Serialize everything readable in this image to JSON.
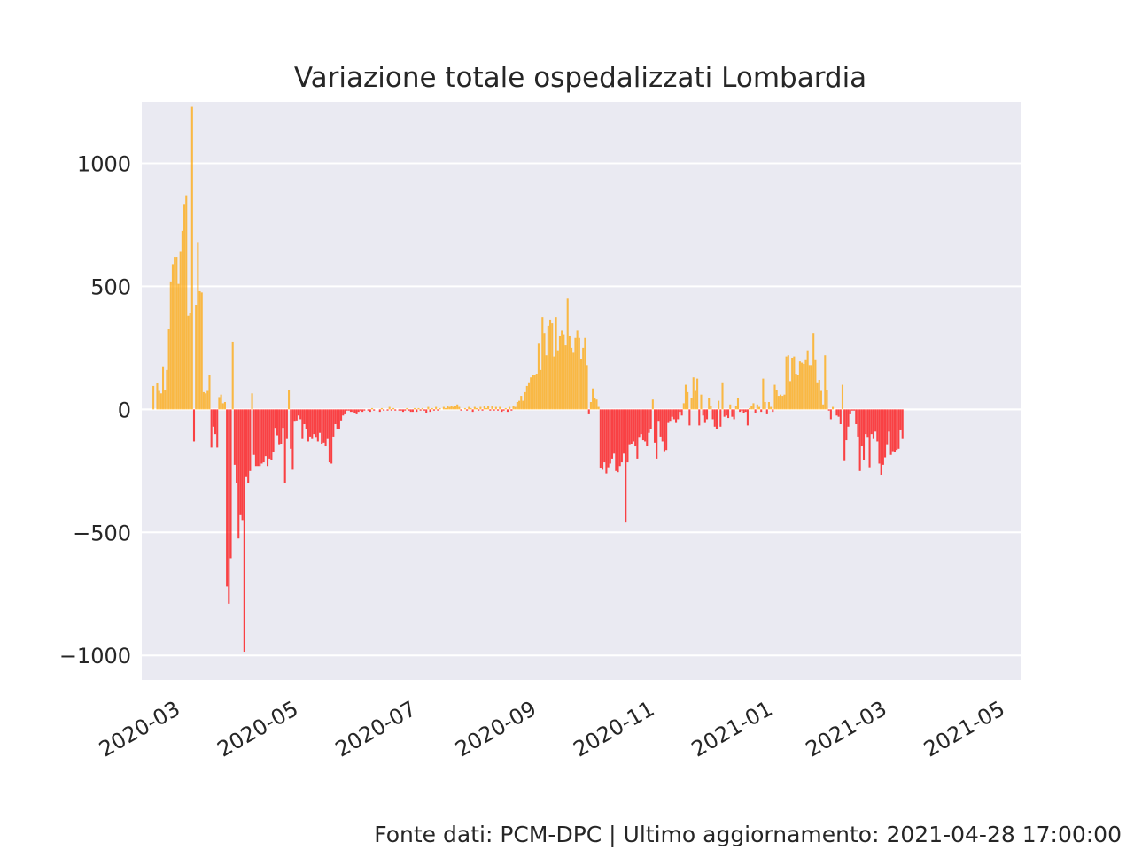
{
  "chart_data": {
    "type": "bar",
    "title": "Variazione totale ospedalizzati Lombardia",
    "xlabel": "",
    "ylabel": "",
    "xlim": [
      "2020-02-18",
      "2021-05-17"
    ],
    "ylim": [
      -1100,
      1250
    ],
    "y_ticks": [
      1000,
      500,
      0,
      -500,
      -1000
    ],
    "y_tick_labels": [
      "1000",
      "500",
      "0",
      "−500",
      "−1000"
    ],
    "x_ticks": [
      "2020-03-01",
      "2020-05-01",
      "2020-07-01",
      "2020-09-01",
      "2020-11-01",
      "2021-01-01",
      "2021-03-01",
      "2021-05-01"
    ],
    "x_tick_labels": [
      "2020-03",
      "2020-05",
      "2020-07",
      "2020-09",
      "2020-11",
      "2021-01",
      "2021-03",
      "2021-05"
    ],
    "positive_color": "#FFA500",
    "negative_color": "#FF0000",
    "grid": true,
    "legend": "none",
    "start_date": "2020-02-24",
    "values": [
      95,
      0,
      108,
      75,
      65,
      175,
      80,
      160,
      325,
      520,
      590,
      620,
      620,
      510,
      640,
      725,
      835,
      870,
      380,
      390,
      1230,
      -130,
      425,
      680,
      480,
      475,
      70,
      65,
      75,
      140,
      -155,
      -70,
      -100,
      -155,
      50,
      60,
      25,
      30,
      -720,
      -790,
      -605,
      275,
      -225,
      -300,
      -525,
      -430,
      -450,
      -985,
      -275,
      -300,
      -250,
      65,
      -185,
      -230,
      -230,
      -230,
      -220,
      -215,
      -190,
      -230,
      -200,
      -205,
      -175,
      -75,
      -105,
      -145,
      -140,
      -75,
      -300,
      -120,
      80,
      -160,
      -245,
      -50,
      -45,
      -25,
      -40,
      -120,
      -60,
      -80,
      -130,
      -110,
      -120,
      -100,
      -115,
      -130,
      -95,
      -140,
      -135,
      -150,
      -120,
      -215,
      -220,
      -110,
      -60,
      -80,
      -80,
      -45,
      -25,
      -20,
      -5,
      -5,
      -10,
      -10,
      -15,
      -20,
      -10,
      -5,
      -10,
      -5,
      0,
      -5,
      -10,
      5,
      -5,
      0,
      0,
      -10,
      5,
      -5,
      0,
      -5,
      10,
      -5,
      5,
      -5,
      0,
      -5,
      -5,
      -10,
      -5,
      5,
      -5,
      -10,
      -10,
      5,
      -10,
      5,
      -5,
      5,
      -5,
      -15,
      10,
      -10,
      5,
      -5,
      10,
      -5,
      5,
      0,
      10,
      5,
      15,
      10,
      15,
      10,
      15,
      20,
      10,
      -5,
      0,
      5,
      -5,
      10,
      5,
      -10,
      10,
      5,
      -5,
      10,
      -5,
      15,
      5,
      15,
      -5,
      15,
      -5,
      10,
      -5,
      10,
      -10,
      -5,
      5,
      -10,
      10,
      -5,
      15,
      10,
      30,
      35,
      55,
      35,
      70,
      95,
      110,
      130,
      140,
      140,
      145,
      270,
      160,
      375,
      310,
      220,
      340,
      365,
      350,
      215,
      375,
      240,
      300,
      320,
      305,
      260,
      450,
      300,
      250,
      230,
      290,
      320,
      290,
      205,
      250,
      290,
      180,
      -20,
      30,
      85,
      45,
      40,
      10,
      -240,
      -245,
      -215,
      -260,
      -235,
      -220,
      -200,
      -180,
      -250,
      -255,
      -230,
      -215,
      -180,
      -460,
      -215,
      -145,
      -140,
      -130,
      -150,
      -200,
      -115,
      -100,
      -125,
      -130,
      -150,
      -95,
      -80,
      40,
      -135,
      -200,
      -50,
      -110,
      -130,
      -170,
      -165,
      -55,
      -50,
      -30,
      -40,
      -55,
      -40,
      -10,
      -25,
      25,
      100,
      70,
      -65,
      45,
      130,
      75,
      125,
      -65,
      60,
      -25,
      -55,
      -40,
      45,
      15,
      -40,
      -70,
      -80,
      35,
      -70,
      110,
      -30,
      -25,
      -35,
      20,
      -30,
      -40,
      15,
      45,
      -10,
      -5,
      -15,
      -10,
      -65,
      5,
      15,
      25,
      -15,
      20,
      10,
      -10,
      125,
      30,
      -20,
      30,
      10,
      -10,
      100,
      80,
      55,
      60,
      55,
      60,
      215,
      220,
      115,
      210,
      215,
      145,
      140,
      195,
      190,
      185,
      200,
      240,
      180,
      180,
      310,
      200,
      110,
      120,
      75,
      20,
      220,
      80,
      -5,
      -40,
      10,
      0,
      -25,
      -30,
      -60,
      100,
      -210,
      -125,
      -70,
      -20,
      -5,
      -5,
      -60,
      -110,
      -250,
      -150,
      -205,
      -100,
      -115,
      -235,
      -100,
      -120,
      -90,
      -130,
      -220,
      -265,
      -225,
      -195,
      -145,
      -90,
      -185,
      -170,
      -175,
      -165,
      -160,
      -85,
      -120
    ]
  },
  "footer": "Fonte dati: PCM-DPC | Ultimo aggiornamento: 2021-04-28 17:00:00"
}
